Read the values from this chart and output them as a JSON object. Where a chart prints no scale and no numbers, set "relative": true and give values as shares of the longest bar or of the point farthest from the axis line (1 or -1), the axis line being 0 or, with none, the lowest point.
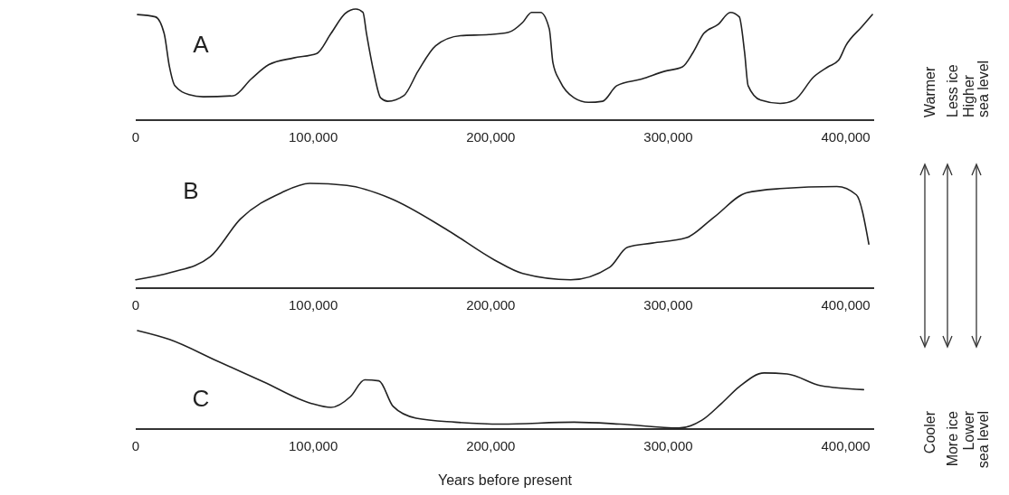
{
  "chart_data": [
    {
      "type": "line",
      "relative": true,
      "color": "#222222",
      "annotations": [
        "A"
      ],
      "x": [
        1000,
        11000,
        16000,
        19000,
        22000,
        30000,
        38000,
        55000,
        65000,
        75000,
        89000,
        102000,
        110000,
        118000,
        124000,
        128000,
        130000,
        134000,
        138000,
        142000,
        151000,
        159000,
        169000,
        183000,
        199000,
        210000,
        218000,
        223000,
        228000,
        233000,
        235000,
        239000,
        247000,
        255000,
        263000,
        271000,
        285000,
        298000,
        308000,
        314000,
        320000,
        328000,
        335000,
        340000,
        343000,
        345000,
        352000,
        363000,
        371000,
        382000,
        390000,
        396000,
        400000,
        409000,
        415000
      ],
      "values": [
        0.95,
        0.93,
        0.78,
        0.48,
        0.31,
        0.23,
        0.21,
        0.22,
        0.37,
        0.5,
        0.56,
        0.6,
        0.78,
        0.96,
        1.0,
        0.97,
        0.78,
        0.44,
        0.2,
        0.17,
        0.22,
        0.44,
        0.67,
        0.76,
        0.77,
        0.79,
        0.88,
        0.97,
        0.97,
        0.82,
        0.52,
        0.35,
        0.2,
        0.16,
        0.17,
        0.31,
        0.37,
        0.44,
        0.48,
        0.61,
        0.78,
        0.86,
        0.97,
        0.93,
        0.61,
        0.31,
        0.18,
        0.15,
        0.18,
        0.39,
        0.48,
        0.54,
        0.67,
        0.84,
        0.95
      ],
      "xlim": [
        0,
        416000
      ],
      "xticks": [
        {
          "value": 0,
          "label": "0"
        },
        {
          "value": 100000,
          "label": "100,000"
        },
        {
          "value": 200000,
          "label": "200,000"
        },
        {
          "value": 300000,
          "label": "300,000"
        },
        {
          "value": 400000,
          "label": "400,000"
        }
      ]
    },
    {
      "type": "line",
      "relative": true,
      "color": "#222222",
      "annotations": [
        "B"
      ],
      "x": [
        0,
        20000,
        42000,
        59000,
        82000,
        98000,
        119000,
        143000,
        176000,
        202000,
        218000,
        245000,
        267000,
        277000,
        291000,
        310000,
        326000,
        344000,
        363000,
        395000,
        406000,
        413000
      ],
      "values": [
        0.08,
        0.15,
        0.3,
        0.66,
        0.91,
        1.0,
        0.98,
        0.86,
        0.55,
        0.27,
        0.14,
        0.08,
        0.2,
        0.39,
        0.43,
        0.48,
        0.68,
        0.91,
        0.95,
        0.97,
        0.89,
        0.42
      ],
      "xlim": [
        0,
        416000
      ],
      "xticks": [
        {
          "value": 0,
          "label": "0"
        },
        {
          "value": 100000,
          "label": "100,000"
        },
        {
          "value": 200000,
          "label": "200,000"
        },
        {
          "value": 300000,
          "label": "300,000"
        },
        {
          "value": 400000,
          "label": "400,000"
        }
      ]
    },
    {
      "type": "line",
      "relative": true,
      "color": "#222222",
      "annotations": [
        "C"
      ],
      "xlabel": "Years before present",
      "x": [
        1000,
        19000,
        46000,
        72000,
        99000,
        110000,
        121000,
        129000,
        137000,
        145000,
        158000,
        180000,
        206000,
        247000,
        273000,
        306000,
        319000,
        330000,
        340000,
        354000,
        367000,
        386000,
        410000
      ],
      "values": [
        1.0,
        0.91,
        0.69,
        0.48,
        0.26,
        0.22,
        0.33,
        0.5,
        0.49,
        0.23,
        0.11,
        0.07,
        0.05,
        0.07,
        0.05,
        0.01,
        0.09,
        0.26,
        0.43,
        0.57,
        0.56,
        0.44,
        0.4
      ],
      "xlim": [
        0,
        416000
      ],
      "xticks": [
        {
          "value": 0,
          "label": "0"
        },
        {
          "value": 100000,
          "label": "100,000"
        },
        {
          "value": 200000,
          "label": "200,000"
        },
        {
          "value": 300000,
          "label": "300,000"
        },
        {
          "value": 400000,
          "label": "400,000"
        }
      ]
    },
    {
      "type": "other",
      "annotations": [
        "Warmer",
        "Less ice",
        "Higher\nsea level",
        "Cooler",
        "More ice",
        "Lower\nsea level"
      ]
    }
  ]
}
